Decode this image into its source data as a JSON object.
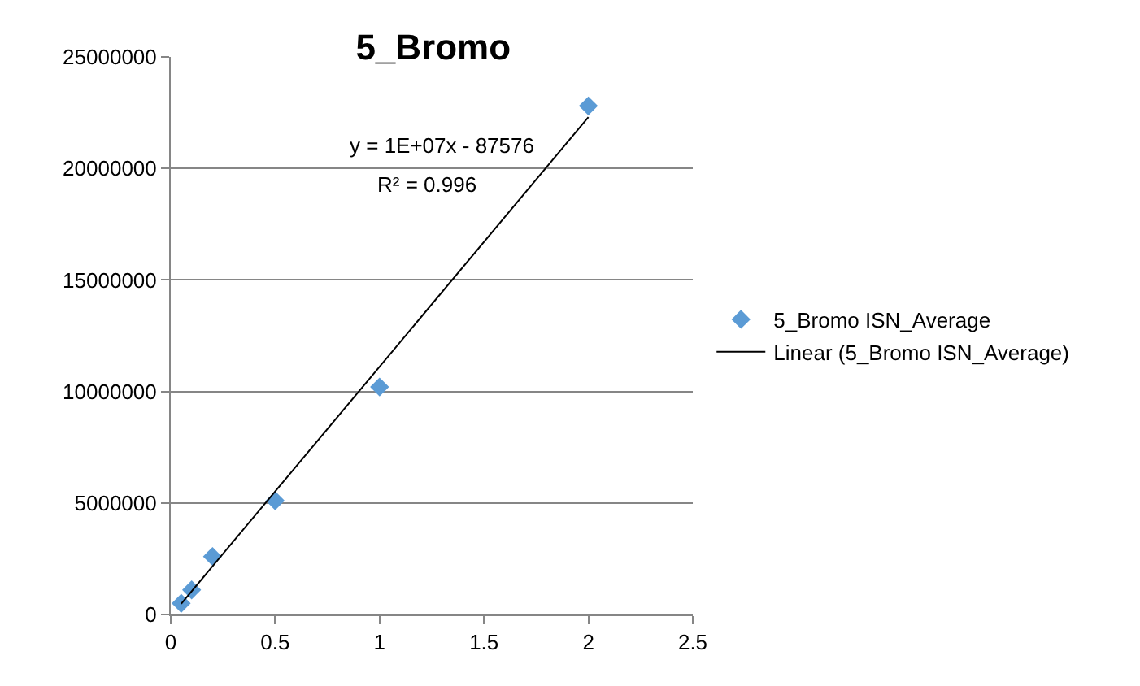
{
  "chart_data": {
    "type": "scatter",
    "title": "5_Bromo",
    "series": [
      {
        "name": "5_Bromo ISN_Average",
        "color": "#5b9bd5",
        "x": [
          0.05,
          0.1,
          0.2,
          0.5,
          1,
          2
        ],
        "values": [
          500000,
          1100000,
          2600000,
          5100000,
          10200000,
          22800000
        ],
        "marker": "diamond"
      },
      {
        "name": "Linear (5_Bromo ISN_Average)",
        "type": "line",
        "color": "#000000",
        "x": [
          0.05,
          2
        ],
        "values": [
          480000,
          22300000
        ],
        "marker": "none",
        "line_style": "solid"
      }
    ],
    "annotations": [
      "y = 1E+07x - 87576",
      "R² = 0.996"
    ],
    "xlim": [
      0,
      2.5
    ],
    "xticks": [
      0,
      0.5,
      1,
      1.5,
      2,
      2.5
    ],
    "ylim": [
      0,
      25000000
    ],
    "yticks": [
      0,
      5000000,
      10000000,
      15000000,
      20000000,
      25000000
    ],
    "grid": "y",
    "legend": "right"
  }
}
